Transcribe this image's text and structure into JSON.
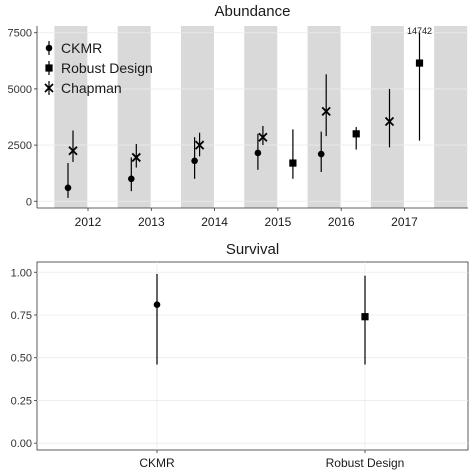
{
  "chart_data": [
    {
      "type": "scatter",
      "title": "Abundance",
      "xlabel": "",
      "ylabel": "",
      "ylim": [
        0,
        7500
      ],
      "y_ticks": [
        0,
        2500,
        5000,
        7500
      ],
      "y_tick_labels": [
        "0",
        "2500",
        "5000",
        "7500"
      ],
      "x_tick_labels": [
        "2012",
        "2013",
        "2014",
        "2015",
        "2016",
        "2017"
      ],
      "grid": true,
      "shaded_bands": "alternating grey bands per year",
      "legend_position": "top-left",
      "series": [
        {
          "name": "CKMR",
          "marker": "circle",
          "points": [
            {
              "year": 2012,
              "estimate": 600,
              "lower": 150,
              "upper": 1700
            },
            {
              "year": 2013,
              "estimate": 1000,
              "lower": 450,
              "upper": 1950
            },
            {
              "year": 2014,
              "estimate": 1800,
              "lower": 1000,
              "upper": 2850
            },
            {
              "year": 2015,
              "estimate": 2150,
              "lower": 1400,
              "upper": 3000
            },
            {
              "year": 2016,
              "estimate": 2100,
              "lower": 1300,
              "upper": 3100
            }
          ]
        },
        {
          "name": "Robust Design",
          "marker": "square",
          "points": [
            {
              "year": 2015,
              "estimate": 1700,
              "lower": 1000,
              "upper": 3200
            },
            {
              "year": 2016,
              "estimate": 3000,
              "lower": 2300,
              "upper": 3300
            },
            {
              "year": 2017,
              "estimate": 6150,
              "lower": 2700,
              "upper": 7500
            }
          ]
        },
        {
          "name": "Chapman",
          "marker": "x",
          "points": [
            {
              "year": 2012,
              "estimate": 2250,
              "lower": 1750,
              "upper": 3150
            },
            {
              "year": 2013,
              "estimate": 1950,
              "lower": 1500,
              "upper": 2550
            },
            {
              "year": 2014,
              "estimate": 2500,
              "lower": 2000,
              "upper": 3050
            },
            {
              "year": 2015,
              "estimate": 2850,
              "lower": 2500,
              "upper": 3350
            },
            {
              "year": 2016,
              "estimate": 4000,
              "lower": 2900,
              "upper": 5650
            },
            {
              "year": 2017,
              "estimate": 3550,
              "lower": 2400,
              "upper": 5000
            }
          ]
        }
      ],
      "annotations": [
        {
          "text": "14742",
          "year": 2017,
          "series": "Robust Design",
          "note": "upper bound beyond axis (arrow)"
        }
      ]
    },
    {
      "type": "scatter",
      "title": "Survival",
      "xlabel": "",
      "ylabel": "",
      "ylim": [
        0,
        1
      ],
      "y_ticks": [
        0,
        0.25,
        0.5,
        0.75,
        1
      ],
      "y_tick_labels": [
        "0.00",
        "0.25",
        "0.50",
        "0.75",
        "1.00"
      ],
      "categories": [
        "CKMR",
        "Robust Design"
      ],
      "grid": true,
      "series": [
        {
          "category": "CKMR",
          "marker": "circle",
          "estimate": 0.81,
          "lower": 0.46,
          "upper": 0.99
        },
        {
          "category": "Robust Design",
          "marker": "square",
          "estimate": 0.74,
          "lower": 0.46,
          "upper": 0.98
        }
      ]
    }
  ]
}
